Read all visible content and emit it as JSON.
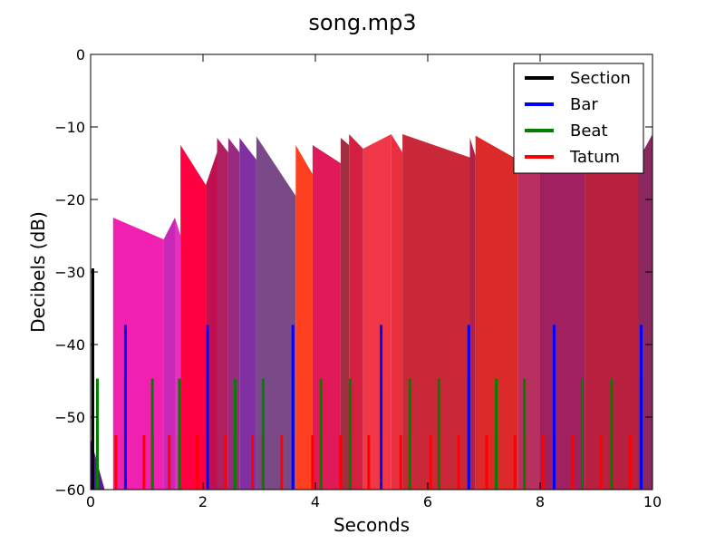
{
  "chart_data": {
    "type": "area",
    "title": "song.mp3",
    "xlabel": "Seconds",
    "ylabel": "Decibels (dB)",
    "xlim": [
      0,
      10
    ],
    "ylim": [
      -60,
      0
    ],
    "xticks": [
      0,
      2,
      4,
      6,
      8,
      10
    ],
    "xtick_labels": [
      "0",
      "2",
      "4",
      "6",
      "8",
      "10"
    ],
    "yticks": [
      0,
      -10,
      -20,
      -30,
      -40,
      -50,
      -60
    ],
    "ytick_labels": [
      "0",
      "−10",
      "−20",
      "−30",
      "−40",
      "−50",
      "−60"
    ],
    "grid": false,
    "legend_position": "top-right",
    "segments": [
      {
        "start": 0.0,
        "end": 0.25,
        "loudness_start": -53.0,
        "loudness_max": -60.0,
        "color": "#5a1a9a"
      },
      {
        "start": 0.4,
        "end": 1.3,
        "loudness_start": -22.5,
        "loudness_max": -25.5,
        "color": "#f020b0"
      },
      {
        "start": 1.3,
        "end": 1.5,
        "loudness_start": -25.5,
        "loudness_max": -22.5,
        "color": "#c828b8"
      },
      {
        "start": 1.5,
        "end": 1.6,
        "loudness_start": -22.5,
        "loudness_max": -25.0,
        "color": "#e830c0"
      },
      {
        "start": 1.6,
        "end": 2.05,
        "loudness_start": -12.5,
        "loudness_max": -18.0,
        "color": "#ff0040"
      },
      {
        "start": 2.05,
        "end": 2.25,
        "loudness_start": -18.0,
        "loudness_max": -13.5,
        "color": "#c01050"
      },
      {
        "start": 2.25,
        "end": 2.45,
        "loudness_start": -11.5,
        "loudness_max": -13.5,
        "color": "#b02060"
      },
      {
        "start": 2.45,
        "end": 2.65,
        "loudness_start": -11.5,
        "loudness_max": -13.5,
        "color": "#9a2a80"
      },
      {
        "start": 2.65,
        "end": 2.95,
        "loudness_start": -11.5,
        "loudness_max": -14.5,
        "color": "#8030a0"
      },
      {
        "start": 2.95,
        "end": 3.65,
        "loudness_start": -11.3,
        "loudness_max": -19.5,
        "color": "#7a4a88"
      },
      {
        "start": 3.65,
        "end": 3.95,
        "loudness_start": -12.5,
        "loudness_max": -16.5,
        "color": "#ff4020"
      },
      {
        "start": 3.95,
        "end": 4.45,
        "loudness_start": -12.5,
        "loudness_max": -15.0,
        "color": "#e01a58"
      },
      {
        "start": 4.45,
        "end": 4.6,
        "loudness_start": -11.5,
        "loudness_max": -12.5,
        "color": "#a03040"
      },
      {
        "start": 4.6,
        "end": 4.85,
        "loudness_start": -11.0,
        "loudness_max": -13.0,
        "color": "#d42040"
      },
      {
        "start": 4.85,
        "end": 5.35,
        "loudness_start": -13.0,
        "loudness_max": -11.0,
        "color": "#f03848"
      },
      {
        "start": 5.35,
        "end": 5.55,
        "loudness_start": -11.0,
        "loudness_max": -13.5,
        "color": "#e83040"
      },
      {
        "start": 5.55,
        "end": 6.75,
        "loudness_start": -11.0,
        "loudness_max": -14.2,
        "color": "#c82838"
      },
      {
        "start": 6.75,
        "end": 6.85,
        "loudness_start": -11.5,
        "loudness_max": -14.0,
        "color": "#b02048"
      },
      {
        "start": 6.85,
        "end": 7.6,
        "loudness_start": -11.2,
        "loudness_max": -14.5,
        "color": "#dc2a2a"
      },
      {
        "start": 7.6,
        "end": 8.0,
        "loudness_start": -14.0,
        "loudness_max": -14.0,
        "color": "#b83060"
      },
      {
        "start": 8.0,
        "end": 8.8,
        "loudness_start": -14.0,
        "loudness_max": -14.0,
        "color": "#a02060"
      },
      {
        "start": 8.8,
        "end": 9.75,
        "loudness_start": -14.0,
        "loudness_max": -14.5,
        "color": "#b82040"
      },
      {
        "start": 9.75,
        "end": 10.0,
        "loudness_start": -14.5,
        "loudness_max": -11.0,
        "color": "#8a2860"
      }
    ],
    "series": [
      {
        "name": "Section",
        "color": "#000000",
        "y_top": -29.5,
        "times": [
          0.04
        ]
      },
      {
        "name": "Bar",
        "color": "#0000ff",
        "y_top": -37.3,
        "times": [
          0.62,
          2.08,
          3.6,
          5.17,
          6.73,
          8.25,
          9.8
        ]
      },
      {
        "name": "Beat",
        "color": "#008000",
        "y_top": -44.7,
        "times": [
          0.12,
          0.62,
          1.1,
          1.58,
          2.08,
          2.57,
          3.07,
          3.6,
          4.1,
          4.62,
          5.17,
          5.68,
          6.2,
          6.73,
          7.22,
          7.72,
          8.25,
          8.75,
          9.27,
          9.8
        ]
      },
      {
        "name": "Tatum",
        "color": "#ff0000",
        "y_top": -52.5,
        "times": [
          0.12,
          0.45,
          0.62,
          0.95,
          1.1,
          1.4,
          1.58,
          1.9,
          2.08,
          2.4,
          2.57,
          2.88,
          3.07,
          3.4,
          3.6,
          3.95,
          4.1,
          4.45,
          4.62,
          4.95,
          5.17,
          5.52,
          5.68,
          6.05,
          6.2,
          6.55,
          6.73,
          7.05,
          7.22,
          7.55,
          7.72,
          8.05,
          8.25,
          8.58,
          8.75,
          9.08,
          9.27,
          9.6,
          9.8
        ]
      }
    ]
  }
}
